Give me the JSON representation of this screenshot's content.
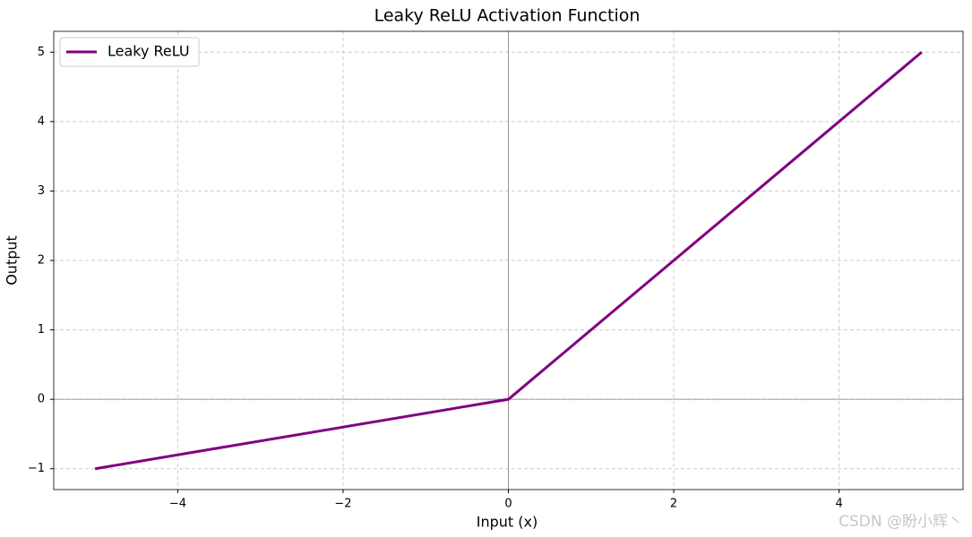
{
  "chart_data": {
    "type": "line",
    "title": "Leaky ReLU Activation Function",
    "x_label": "Input (x)",
    "y_label": "Output",
    "x": [
      -5,
      0,
      5
    ],
    "series": [
      {
        "name": "Leaky ReLU",
        "color": "#800080",
        "values": [
          -1,
          0,
          5
        ]
      }
    ],
    "xlim": [
      -5.5,
      5.5
    ],
    "ylim": [
      -1.3,
      5.3
    ],
    "xticks": [
      {
        "value": -4,
        "label": "−4"
      },
      {
        "value": -2,
        "label": "−2"
      },
      0,
      2,
      4
    ],
    "yticks": [
      {
        "value": -1,
        "label": "−1"
      },
      0,
      1,
      2,
      3,
      4,
      5
    ],
    "grid": true,
    "legend": "upper-left",
    "watermark": "CSDN @盼小辉丶"
  }
}
